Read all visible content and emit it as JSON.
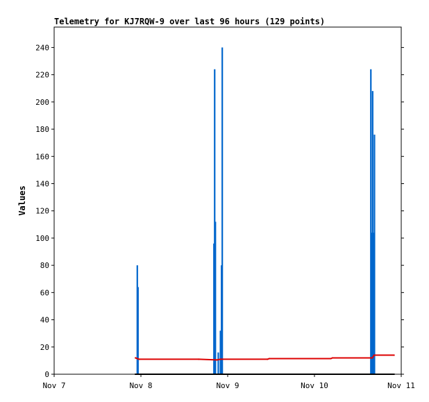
{
  "chart_data": {
    "type": "line",
    "title": "Telemetry for KJ7RQW-9 over last 96 hours (129 points)",
    "xlabel": "",
    "ylabel": "Values",
    "x_ticks": [
      "Nov 7",
      "Nov 8",
      "Nov 9",
      "Nov 10",
      "Nov 11"
    ],
    "x_unit": "hours since Nov 7 00:00",
    "xlim": [
      0,
      96
    ],
    "ylim": [
      0,
      255
    ],
    "y_ticks": [
      0,
      20,
      40,
      60,
      80,
      100,
      120,
      140,
      160,
      180,
      200,
      220,
      240
    ],
    "grid": false,
    "legend": "none",
    "series": [
      {
        "color": "#0066cc",
        "style": "spikes",
        "points": [
          [
            23.0,
            80
          ],
          [
            23.2,
            64
          ],
          [
            44.2,
            96
          ],
          [
            44.4,
            224
          ],
          [
            44.6,
            112
          ],
          [
            45.4,
            16
          ],
          [
            46.0,
            32
          ],
          [
            46.3,
            80
          ],
          [
            46.5,
            240
          ],
          [
            87.6,
            224
          ],
          [
            87.8,
            104
          ],
          [
            88.1,
            208
          ],
          [
            88.3,
            104
          ],
          [
            88.6,
            176
          ]
        ]
      },
      {
        "color": "#dd0000",
        "style": "line",
        "points": [
          [
            22.5,
            12
          ],
          [
            23.5,
            11
          ],
          [
            40.0,
            11
          ],
          [
            45.0,
            10.5
          ],
          [
            46.0,
            11
          ],
          [
            59.0,
            11
          ],
          [
            59.5,
            11.5
          ],
          [
            76.5,
            11.5
          ],
          [
            77.0,
            12
          ],
          [
            88.0,
            12
          ],
          [
            88.5,
            14
          ],
          [
            94.0,
            14
          ]
        ]
      },
      {
        "color": "#000000",
        "style": "line",
        "points": [
          [
            22.5,
            0
          ],
          [
            94.0,
            0
          ]
        ]
      }
    ]
  }
}
